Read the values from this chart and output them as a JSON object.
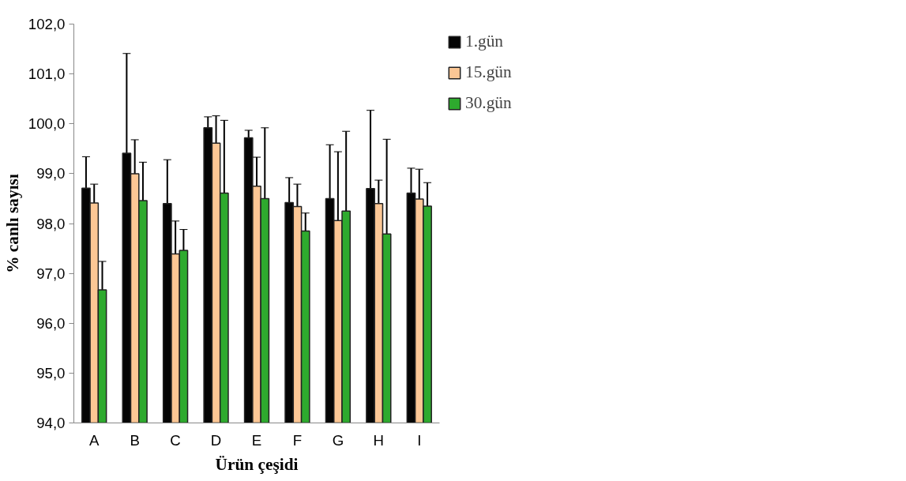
{
  "chart_data": {
    "type": "bar",
    "xlabel": "Ürün çeşidi",
    "ylabel": "% canlı sayısı",
    "categories": [
      "A",
      "B",
      "C",
      "D",
      "E",
      "F",
      "G",
      "H",
      "I"
    ],
    "series": [
      {
        "name": "1.gün",
        "color": "#050505",
        "values": [
          98.71,
          99.41,
          98.4,
          99.92,
          99.72,
          98.42,
          98.5,
          98.7,
          98.61
        ],
        "errors": [
          0.63,
          2.0,
          0.88,
          0.22,
          0.15,
          0.5,
          1.08,
          1.57,
          0.5
        ]
      },
      {
        "name": "15.gün",
        "color": "#fcc795",
        "values": [
          98.41,
          99.0,
          97.39,
          99.61,
          98.75,
          98.34,
          98.06,
          98.4,
          98.49
        ],
        "errors": [
          0.38,
          0.68,
          0.66,
          0.55,
          0.58,
          0.45,
          1.38,
          0.47,
          0.6
        ]
      },
      {
        "name": "30.gün",
        "color": "#2eaa2e",
        "values": [
          96.67,
          98.46,
          97.46,
          98.61,
          98.5,
          97.85,
          98.25,
          97.79,
          98.35
        ],
        "errors": [
          0.57,
          0.77,
          0.42,
          1.46,
          1.42,
          0.36,
          1.6,
          1.9,
          0.47
        ]
      }
    ],
    "ylim": [
      94,
      102
    ],
    "yticks": [
      {
        "value": 94,
        "label": "94,0"
      },
      {
        "value": 95,
        "label": "95,0"
      },
      {
        "value": 96,
        "label": "96,0"
      },
      {
        "value": 97,
        "label": "97,0"
      },
      {
        "value": 98,
        "label": "98,0"
      },
      {
        "value": 99,
        "label": "99,0"
      },
      {
        "value": 100,
        "label": "100,0"
      },
      {
        "value": 101,
        "label": "101,0"
      },
      {
        "value": 102,
        "label": "102,0"
      }
    ],
    "grid": false,
    "legend": "top right"
  }
}
